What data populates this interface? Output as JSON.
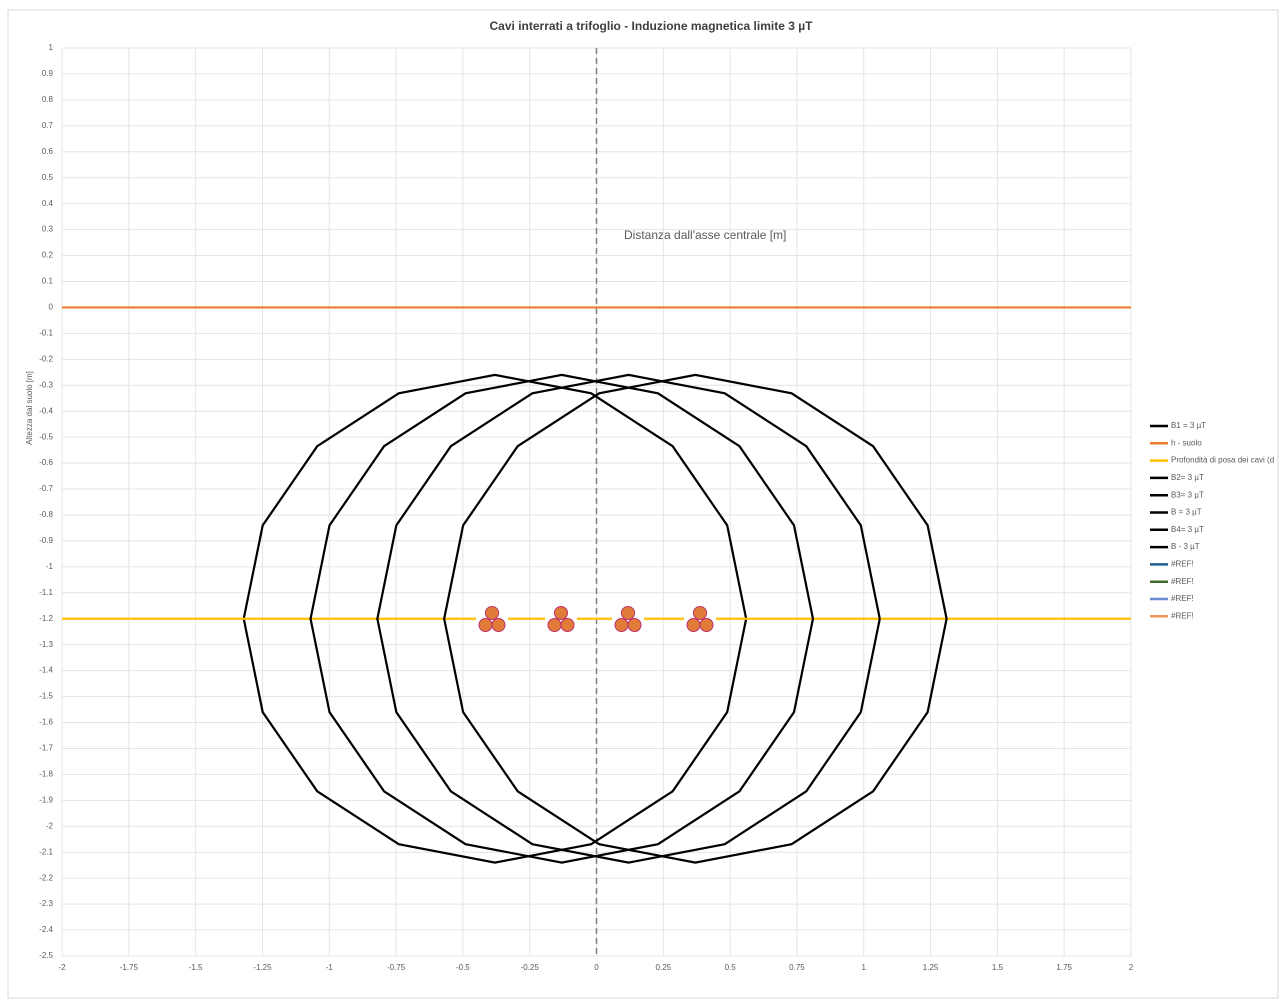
{
  "chart_data": {
    "type": "scatter",
    "title": "Cavi interrati a trifoglio - Induzione magnetica limite 3 µT",
    "x_label": "Distanza dall'asse centrale [m]",
    "y_label": "Altezza dal suolo [m]",
    "xlim": [
      -2,
      2
    ],
    "ylim": [
      -2.5,
      1
    ],
    "xticks": [
      -2,
      -1.75,
      -1.5,
      -1.25,
      -1,
      -0.75,
      -0.5,
      -0.25,
      0,
      0.25,
      0.5,
      0.75,
      1,
      1.25,
      1.5,
      1.75,
      2
    ],
    "yticks": [
      1,
      0.9,
      0.8,
      0.7,
      0.6,
      0.5,
      0.4,
      0.3,
      0.2,
      0.1,
      0,
      -0.1,
      -0.2,
      -0.3,
      -0.4,
      -0.5,
      -0.6,
      -0.7,
      -0.8,
      -0.9,
      -1,
      -1.1,
      -1.2,
      -1.3,
      -1.4,
      -1.5,
      -1.6,
      -1.7,
      -1.8,
      -1.9,
      -2,
      -2.1,
      -2.2,
      -2.3,
      -2.4,
      -2.5
    ],
    "grid": true,
    "legend": "right",
    "series": [
      {
        "name": "B1 = 3 µT",
        "color": "#000000",
        "x": [
          0.56,
          0.489,
          0.285,
          -0.02,
          -0.38,
          -0.74,
          -1.045,
          -1.249,
          -1.32,
          -1.249,
          -1.045,
          -0.74,
          -0.38,
          -0.02,
          0.285,
          0.489,
          0.56
        ],
        "y": [
          -1.2,
          -0.84,
          -0.535,
          -0.331,
          -0.26,
          -0.331,
          -0.535,
          -0.84,
          -1.2,
          -1.56,
          -1.865,
          -2.069,
          -2.14,
          -2.069,
          -1.865,
          -1.56,
          -1.2
        ]
      },
      {
        "name": "h - suolo",
        "color": "#ed7d31",
        "x": [
          -2,
          2
        ],
        "y": [
          0,
          0
        ]
      },
      {
        "name": "Profondità di posa dei cavi (d",
        "color": "#ffc000",
        "x": [
          -2,
          2
        ],
        "y": [
          -1.2,
          -1.2
        ]
      },
      {
        "name": "B2= 3 µT",
        "color": "#000000",
        "x": [
          0.81,
          0.739,
          0.535,
          0.23,
          -0.13,
          -0.49,
          -0.795,
          -0.999,
          -1.07,
          -0.999,
          -0.795,
          -0.49,
          -0.13,
          0.23,
          0.535,
          0.739,
          0.81
        ],
        "y": [
          -1.2,
          -0.84,
          -0.535,
          -0.331,
          -0.26,
          -0.331,
          -0.535,
          -0.84,
          -1.2,
          -1.56,
          -1.865,
          -2.069,
          -2.14,
          -2.069,
          -1.865,
          -1.56,
          -1.2
        ]
      },
      {
        "name": "B3= 3 µT",
        "color": "#000000",
        "x": [
          1.06,
          0.989,
          0.785,
          0.48,
          0.12,
          -0.24,
          -0.545,
          -0.749,
          -0.82,
          -0.749,
          -0.545,
          -0.24,
          0.12,
          0.48,
          0.785,
          0.989,
          1.06
        ],
        "y": [
          -1.2,
          -0.84,
          -0.535,
          -0.331,
          -0.26,
          -0.331,
          -0.535,
          -0.84,
          -1.2,
          -1.56,
          -1.865,
          -2.069,
          -2.14,
          -2.069,
          -1.865,
          -1.56,
          -1.2
        ]
      },
      {
        "name": "B = 3 µT",
        "color": "#000000",
        "x": [],
        "y": []
      },
      {
        "name": "B4= 3 µT",
        "color": "#000000",
        "x": [
          1.31,
          1.239,
          1.035,
          0.73,
          0.37,
          0.01,
          -0.295,
          -0.499,
          -0.57,
          -0.499,
          -0.295,
          0.01,
          0.37,
          0.73,
          1.035,
          1.239,
          1.31
        ],
        "y": [
          -1.2,
          -0.84,
          -0.535,
          -0.331,
          -0.26,
          -0.331,
          -0.535,
          -0.84,
          -1.2,
          -1.56,
          -1.865,
          -2.069,
          -2.14,
          -2.069,
          -1.865,
          -1.56,
          -1.2
        ]
      },
      {
        "name": "B - 3 µT",
        "color": "#000000",
        "x": [],
        "y": []
      },
      {
        "name": "#REF!",
        "color": "#255e91",
        "x": [],
        "y": []
      },
      {
        "name": "#REF!",
        "color": "#43682b",
        "x": [],
        "y": []
      },
      {
        "name": "#REF!",
        "color": "#698ed0",
        "x": [],
        "y": []
      },
      {
        "name": "#REF!",
        "color": "#f1975a",
        "x": [],
        "y": []
      }
    ]
  }
}
